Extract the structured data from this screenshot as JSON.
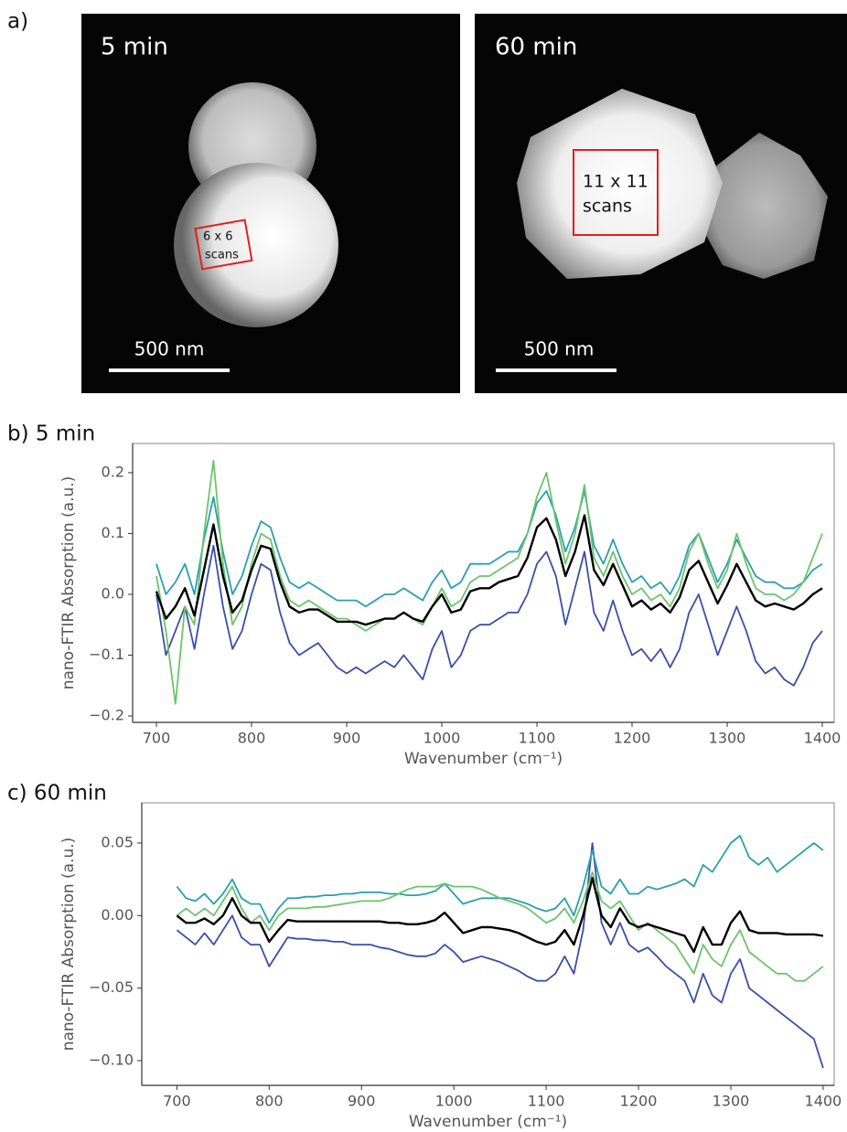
{
  "figure": {
    "panel_a": {
      "label": "a)",
      "images": [
        {
          "title": "5 min",
          "box_label": [
            "6 x 6",
            "scans"
          ],
          "scale_bar": "500 nm"
        },
        {
          "title": "60 min",
          "box_label": [
            "11 x 11",
            "scans"
          ],
          "scale_bar": "500 nm"
        }
      ]
    }
  },
  "chart_data": [
    {
      "type": "line",
      "title": "b) 5 min",
      "x_label": "Wavenumber (cm⁻¹)",
      "y_label": "nano-FTIR Absorption (a.u.)",
      "x": [
        700,
        710,
        720,
        730,
        740,
        750,
        760,
        770,
        780,
        790,
        800,
        810,
        820,
        830,
        840,
        850,
        860,
        870,
        880,
        890,
        900,
        910,
        920,
        930,
        940,
        950,
        960,
        970,
        980,
        990,
        1000,
        1010,
        1020,
        1030,
        1040,
        1050,
        1060,
        1070,
        1080,
        1090,
        1100,
        1110,
        1120,
        1130,
        1140,
        1150,
        1160,
        1170,
        1180,
        1190,
        1200,
        1210,
        1220,
        1230,
        1240,
        1250,
        1260,
        1270,
        1280,
        1290,
        1300,
        1310,
        1320,
        1330,
        1340,
        1350,
        1360,
        1370,
        1380,
        1390,
        1400
      ],
      "xlim": [
        675,
        1412.5
      ],
      "xticks": [
        700,
        800,
        900,
        1000,
        1100,
        1200,
        1300,
        1400
      ],
      "ylim": [
        -0.2105,
        0.248
      ],
      "yticks": [
        {
          "value": -0.2,
          "label": "−0.2"
        },
        {
          "value": -0.1,
          "label": "−0.1"
        },
        {
          "value": 0,
          "label": "0.0"
        },
        {
          "value": 0.1,
          "label": "0.1"
        },
        {
          "value": 0.2,
          "label": "0.2"
        }
      ],
      "series": [
        {
          "color": "#3a4fa6",
          "values": [
            0.0,
            -0.1,
            -0.06,
            -0.02,
            -0.09,
            0.0,
            0.08,
            -0.02,
            -0.09,
            -0.06,
            0.0,
            0.05,
            0.04,
            -0.03,
            -0.08,
            -0.1,
            -0.09,
            -0.08,
            -0.1,
            -0.12,
            -0.13,
            -0.12,
            -0.13,
            -0.12,
            -0.11,
            -0.12,
            -0.1,
            -0.12,
            -0.14,
            -0.09,
            -0.06,
            -0.12,
            -0.1,
            -0.06,
            -0.05,
            -0.05,
            -0.04,
            -0.03,
            -0.03,
            0.0,
            0.05,
            0.07,
            0.03,
            -0.05,
            0.01,
            0.07,
            -0.03,
            -0.06,
            -0.01,
            -0.06,
            -0.1,
            -0.09,
            -0.11,
            -0.09,
            -0.12,
            -0.09,
            -0.03,
            0.0,
            -0.05,
            -0.1,
            -0.06,
            -0.02,
            -0.06,
            -0.11,
            -0.13,
            -0.12,
            -0.14,
            -0.15,
            -0.12,
            -0.08,
            -0.06
          ]
        },
        {
          "color": "#2a9fb0",
          "values": [
            0.05,
            0.0,
            0.02,
            0.05,
            0.0,
            0.09,
            0.16,
            0.07,
            0.0,
            0.03,
            0.08,
            0.12,
            0.11,
            0.06,
            0.02,
            0.01,
            0.02,
            0.01,
            0.0,
            -0.01,
            -0.01,
            -0.01,
            -0.02,
            -0.01,
            0.0,
            0.0,
            0.01,
            0.0,
            -0.01,
            0.02,
            0.04,
            0.01,
            0.02,
            0.05,
            0.05,
            0.05,
            0.06,
            0.07,
            0.07,
            0.1,
            0.15,
            0.17,
            0.13,
            0.07,
            0.11,
            0.17,
            0.08,
            0.05,
            0.09,
            0.05,
            0.02,
            0.03,
            0.01,
            0.02,
            0.0,
            0.03,
            0.08,
            0.1,
            0.06,
            0.02,
            0.05,
            0.09,
            0.06,
            0.03,
            0.02,
            0.02,
            0.01,
            0.01,
            0.02,
            0.04,
            0.05
          ]
        },
        {
          "color": "#6cc46a",
          "values": [
            0.03,
            -0.06,
            -0.18,
            -0.02,
            -0.05,
            0.1,
            0.22,
            0.05,
            -0.05,
            -0.02,
            0.05,
            0.1,
            0.09,
            0.03,
            -0.01,
            -0.02,
            -0.01,
            -0.02,
            -0.03,
            -0.04,
            -0.04,
            -0.05,
            -0.06,
            -0.05,
            -0.04,
            -0.04,
            -0.03,
            -0.04,
            -0.05,
            -0.02,
            0.01,
            -0.02,
            -0.01,
            0.02,
            0.03,
            0.03,
            0.04,
            0.05,
            0.06,
            0.1,
            0.16,
            0.2,
            0.12,
            0.05,
            0.1,
            0.18,
            0.06,
            0.03,
            0.07,
            0.03,
            0.0,
            0.01,
            -0.01,
            0.0,
            -0.02,
            0.01,
            0.07,
            0.1,
            0.05,
            0.01,
            0.04,
            0.1,
            0.05,
            0.01,
            0.0,
            0.0,
            -0.01,
            0.0,
            0.02,
            0.06,
            0.1
          ]
        },
        {
          "color": "#000000",
          "values": [
            0.005,
            -0.04,
            -0.02,
            0.01,
            -0.035,
            0.04,
            0.115,
            0.03,
            -0.03,
            -0.01,
            0.04,
            0.08,
            0.075,
            0.02,
            -0.02,
            -0.03,
            -0.025,
            -0.025,
            -0.035,
            -0.045,
            -0.045,
            -0.045,
            -0.05,
            -0.045,
            -0.04,
            -0.04,
            -0.03,
            -0.04,
            -0.045,
            -0.02,
            0.0,
            -0.03,
            -0.025,
            0.005,
            0.01,
            0.01,
            0.02,
            0.025,
            0.03,
            0.06,
            0.11,
            0.125,
            0.09,
            0.03,
            0.07,
            0.13,
            0.04,
            0.015,
            0.05,
            0.015,
            -0.02,
            -0.01,
            -0.025,
            -0.015,
            -0.03,
            -0.005,
            0.04,
            0.055,
            0.02,
            -0.015,
            0.015,
            0.05,
            0.02,
            -0.01,
            -0.02,
            -0.015,
            -0.02,
            -0.025,
            -0.015,
            0.0,
            0.01
          ]
        }
      ]
    },
    {
      "type": "line",
      "title": "c) 60 min",
      "x_label": "Wavenumber (cm⁻¹)",
      "y_label": "nano-FTIR Absorption (a.u.)",
      "x": [
        700,
        710,
        720,
        730,
        740,
        750,
        760,
        770,
        780,
        790,
        800,
        810,
        820,
        830,
        840,
        850,
        860,
        870,
        880,
        890,
        900,
        910,
        920,
        930,
        940,
        950,
        960,
        970,
        980,
        990,
        1000,
        1010,
        1020,
        1030,
        1040,
        1050,
        1060,
        1070,
        1080,
        1090,
        1100,
        1110,
        1120,
        1130,
        1140,
        1150,
        1160,
        1170,
        1180,
        1190,
        1200,
        1210,
        1220,
        1230,
        1240,
        1250,
        1260,
        1270,
        1280,
        1290,
        1300,
        1310,
        1320,
        1330,
        1340,
        1350,
        1360,
        1370,
        1380,
        1390,
        1400
      ],
      "xlim": [
        662,
        1412
      ],
      "xticks": [
        700,
        800,
        900,
        1000,
        1100,
        1200,
        1300,
        1400
      ],
      "ylim": [
        -0.117,
        0.0777
      ],
      "yticks": [
        {
          "value": -0.1,
          "label": "−0.10"
        },
        {
          "value": -0.05,
          "label": "−0.05"
        },
        {
          "value": 0,
          "label": "0.00"
        },
        {
          "value": 0.05,
          "label": "0.05"
        }
      ],
      "series": [
        {
          "color": "#3a4fa6",
          "values": [
            -0.01,
            -0.015,
            -0.02,
            -0.012,
            -0.02,
            -0.01,
            0.0,
            -0.015,
            -0.02,
            -0.02,
            -0.035,
            -0.025,
            -0.015,
            -0.016,
            -0.016,
            -0.017,
            -0.017,
            -0.018,
            -0.018,
            -0.02,
            -0.02,
            -0.02,
            -0.022,
            -0.023,
            -0.025,
            -0.027,
            -0.028,
            -0.028,
            -0.026,
            -0.02,
            -0.025,
            -0.032,
            -0.03,
            -0.028,
            -0.03,
            -0.032,
            -0.035,
            -0.038,
            -0.042,
            -0.045,
            -0.045,
            -0.04,
            -0.028,
            -0.04,
            -0.01,
            0.05,
            -0.005,
            -0.02,
            -0.005,
            -0.02,
            -0.025,
            -0.022,
            -0.028,
            -0.035,
            -0.04,
            -0.045,
            -0.06,
            -0.04,
            -0.055,
            -0.06,
            -0.04,
            -0.03,
            -0.05,
            -0.055,
            -0.06,
            -0.065,
            -0.07,
            -0.075,
            -0.08,
            -0.085,
            -0.105
          ]
        },
        {
          "color": "#2a9fb0",
          "values": [
            0.02,
            0.012,
            0.01,
            0.015,
            0.008,
            0.015,
            0.025,
            0.012,
            0.008,
            0.008,
            -0.005,
            0.005,
            0.012,
            0.012,
            0.013,
            0.013,
            0.014,
            0.014,
            0.015,
            0.015,
            0.016,
            0.016,
            0.016,
            0.015,
            0.015,
            0.014,
            0.014,
            0.015,
            0.017,
            0.022,
            0.015,
            0.008,
            0.01,
            0.012,
            0.012,
            0.012,
            0.012,
            0.01,
            0.008,
            0.005,
            0.003,
            0.005,
            0.012,
            0.0,
            0.02,
            0.045,
            0.02,
            0.015,
            0.025,
            0.015,
            0.015,
            0.02,
            0.018,
            0.02,
            0.022,
            0.025,
            0.02,
            0.035,
            0.03,
            0.04,
            0.05,
            0.055,
            0.04,
            0.035,
            0.04,
            0.03,
            0.035,
            0.04,
            0.045,
            0.05,
            0.045
          ]
        },
        {
          "color": "#6cc46a",
          "values": [
            0.0,
            0.005,
            0.0,
            0.005,
            0.0,
            0.01,
            0.02,
            0.005,
            -0.005,
            0.0,
            -0.01,
            0.0,
            0.005,
            0.005,
            0.005,
            0.006,
            0.006,
            0.007,
            0.008,
            0.009,
            0.01,
            0.01,
            0.01,
            0.012,
            0.015,
            0.018,
            0.02,
            0.02,
            0.02,
            0.022,
            0.02,
            0.02,
            0.02,
            0.018,
            0.015,
            0.012,
            0.01,
            0.008,
            0.005,
            0.0,
            -0.005,
            -0.002,
            0.005,
            -0.005,
            0.01,
            0.03,
            0.01,
            0.005,
            0.01,
            0.0,
            -0.01,
            -0.005,
            -0.01,
            -0.015,
            -0.02,
            -0.03,
            -0.04,
            -0.02,
            -0.03,
            -0.035,
            -0.02,
            -0.01,
            -0.025,
            -0.03,
            -0.035,
            -0.04,
            -0.04,
            -0.045,
            -0.045,
            -0.04,
            -0.035
          ]
        },
        {
          "color": "#000000",
          "values": [
            0.0,
            -0.005,
            -0.005,
            -0.002,
            -0.006,
            0.0,
            0.012,
            0.0,
            -0.005,
            -0.005,
            -0.018,
            -0.01,
            -0.003,
            -0.004,
            -0.004,
            -0.004,
            -0.004,
            -0.004,
            -0.004,
            -0.004,
            -0.004,
            -0.004,
            -0.004,
            -0.005,
            -0.005,
            -0.006,
            -0.006,
            -0.005,
            -0.003,
            0.002,
            -0.005,
            -0.012,
            -0.01,
            -0.008,
            -0.008,
            -0.009,
            -0.01,
            -0.012,
            -0.015,
            -0.018,
            -0.02,
            -0.018,
            -0.01,
            -0.02,
            0.0,
            0.026,
            0.0,
            -0.008,
            0.005,
            -0.005,
            -0.008,
            -0.006,
            -0.008,
            -0.01,
            -0.012,
            -0.014,
            -0.025,
            -0.008,
            -0.02,
            -0.02,
            -0.005,
            0.003,
            -0.01,
            -0.012,
            -0.012,
            -0.012,
            -0.013,
            -0.013,
            -0.013,
            -0.013,
            -0.014
          ]
        }
      ]
    }
  ]
}
